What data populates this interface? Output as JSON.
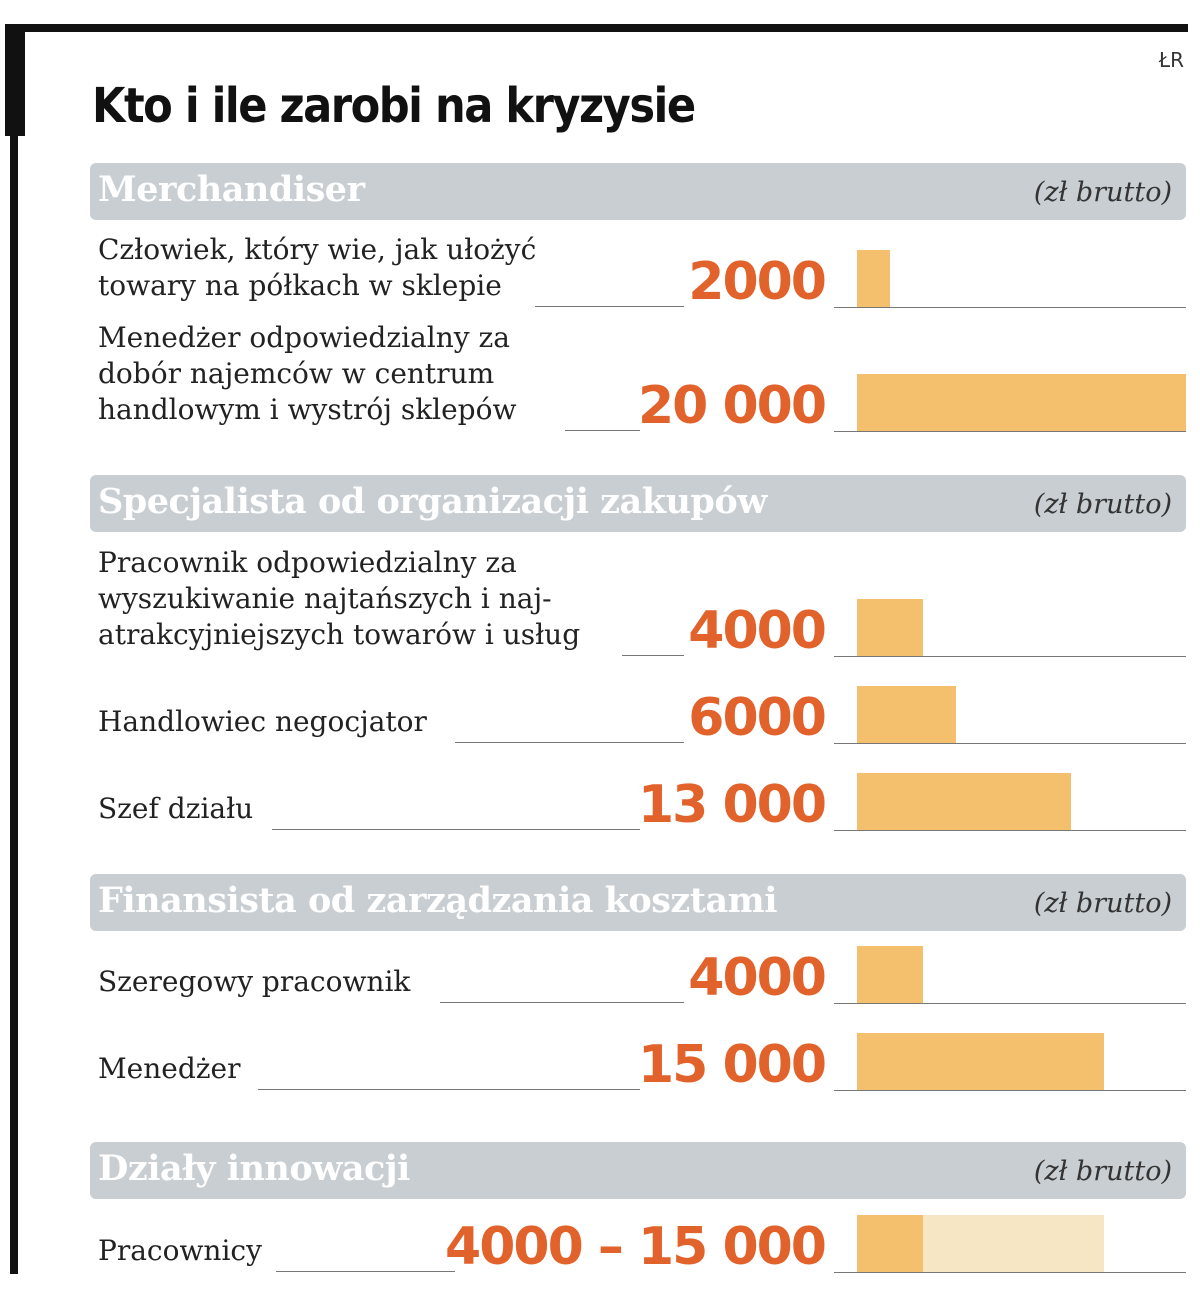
{
  "title": "Kto i ile zarobi na kryzysie",
  "credit": "ŁR",
  "chart_data": {
    "type": "bar",
    "unit": "(zł brutto)",
    "xlim": [
      0,
      20000
    ],
    "groups": [
      {
        "name": "Merchandiser",
        "items": [
          {
            "lines": [
              "Człowiek, który wie, jak ułożyć",
              "towary na półkach w sklepie"
            ],
            "value": 2000,
            "display": "2000"
          },
          {
            "lines": [
              "Menedżer odpowiedzialny za",
              "dobór najemców w centrum",
              "handlowym i wystrój sklepów"
            ],
            "value": 20000,
            "display": "20 000"
          }
        ]
      },
      {
        "name": "Specjalista od organizacji zakupów",
        "items": [
          {
            "lines": [
              "Pracownik odpowiedzialny za",
              "wyszukiwanie najtańszych i naj-",
              "atrakcyjniejszych towarów i usług"
            ],
            "value": 4000,
            "display": "4000"
          },
          {
            "lines": [
              "Handlowiec negocjator"
            ],
            "value": 6000,
            "display": "6000"
          },
          {
            "lines": [
              "Szef działu"
            ],
            "value": 13000,
            "display": "13 000"
          }
        ]
      },
      {
        "name": "Finansista od zarządzania kosztami",
        "items": [
          {
            "lines": [
              "Szeregowy pracownik"
            ],
            "value": 4000,
            "display": "4000"
          },
          {
            "lines": [
              "Menedżer"
            ],
            "value": 15000,
            "display": "15 000"
          }
        ]
      },
      {
        "name": "Działy innowacji",
        "items": [
          {
            "lines": [
              "Pracownicy"
            ],
            "min": 4000,
            "max": 15000,
            "display": "4000 – 15 000"
          }
        ]
      }
    ]
  }
}
